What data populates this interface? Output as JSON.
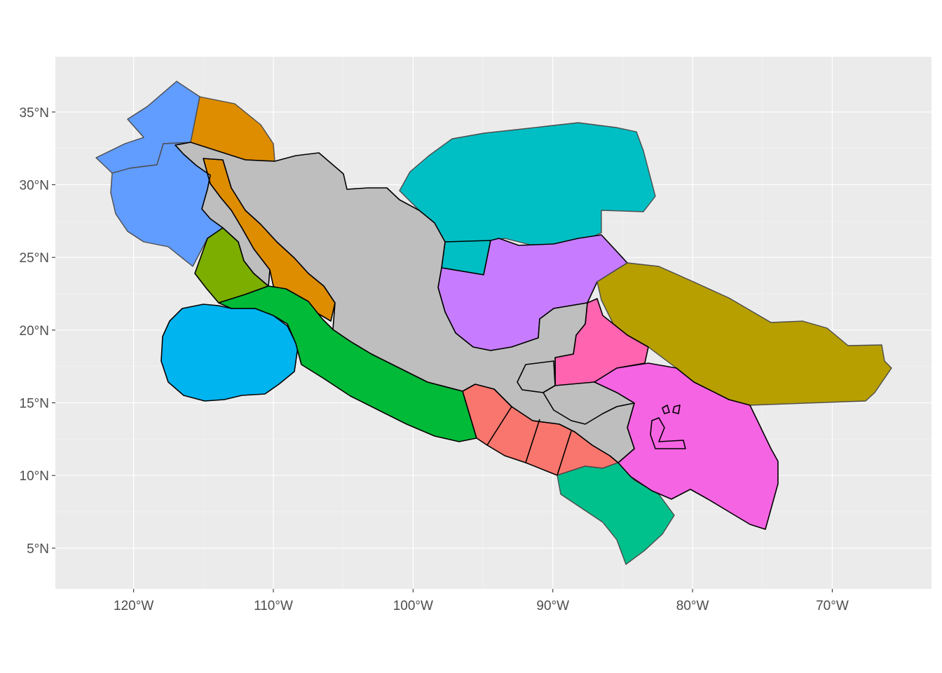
{
  "axes": {
    "x_ticks": [
      {
        "lon": -120,
        "label": "120°W"
      },
      {
        "lon": -110,
        "label": "110°W"
      },
      {
        "lon": -100,
        "label": "100°W"
      },
      {
        "lon": -90,
        "label": "90°W"
      },
      {
        "lon": -80,
        "label": "80°W"
      },
      {
        "lon": -70,
        "label": "70°W"
      }
    ],
    "y_ticks": [
      {
        "lat": 5,
        "label": "5°N"
      },
      {
        "lat": 10,
        "label": "10°N"
      },
      {
        "lat": 15,
        "label": "15°N"
      },
      {
        "lat": 20,
        "label": "20°N"
      },
      {
        "lat": 25,
        "label": "25°N"
      },
      {
        "lat": 30,
        "label": "30°N"
      },
      {
        "lat": 35,
        "label": "35°N"
      }
    ],
    "lon_range": [
      -125.6,
      -62.9
    ],
    "lat_range": [
      2.2,
      38.8
    ]
  },
  "style": {
    "panel_background": "#ebebeb",
    "grid_color": "#ffffff",
    "land_color": "#bebebe"
  },
  "legend": "none",
  "regions": [
    {
      "id": "pacific-california-north",
      "color": "#619cff"
    },
    {
      "id": "gulf-of-california-coast",
      "color": "#de8c00"
    },
    {
      "id": "baja-pacific-south",
      "color": "#7cae00"
    },
    {
      "id": "revillagigedo-offshore",
      "color": "#00b4f0"
    },
    {
      "id": "mexican-pacific-coast",
      "color": "#00ba38"
    },
    {
      "id": "central-american-pacific",
      "color": "#f8766d"
    },
    {
      "id": "costa-rica-pacific",
      "color": "#00c08b"
    },
    {
      "id": "gulf-of-mexico-north",
      "color": "#00bfc4"
    },
    {
      "id": "gulf-of-mexico-south",
      "color": "#c77cff"
    },
    {
      "id": "caribbean-east",
      "color": "#b79f00"
    },
    {
      "id": "caribbean-honduras-nicaragua",
      "color": "#f564e3"
    },
    {
      "id": "caribbean-belize-yucatan",
      "color": "#ff64b0"
    },
    {
      "id": "mainland-mexico-central-america",
      "color": "#bebebe"
    }
  ]
}
